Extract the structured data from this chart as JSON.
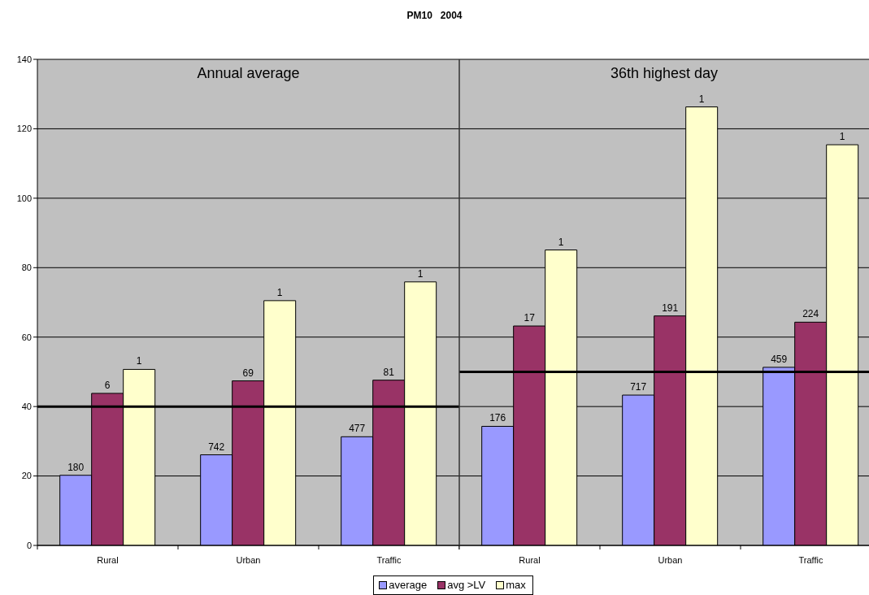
{
  "chart_data": [
    {
      "type": "bar",
      "title": "PM10   2004",
      "categories": [
        "Rural",
        "Urban",
        "Traffic"
      ],
      "series": [
        {
          "name": "average",
          "color": "#9999ff",
          "values": [
            20.2,
            26.1,
            31.3
          ]
        },
        {
          "name": "avg >LV",
          "color": "#993366",
          "values": [
            43.8,
            47.4,
            47.6
          ]
        },
        {
          "name": "max",
          "color": "#ffffcc",
          "values": [
            50.7,
            70.5,
            75.9
          ]
        }
      ],
      "ylim": [
        0,
        140
      ],
      "yticks": [
        0,
        20,
        40,
        60,
        80,
        100,
        120,
        140
      ],
      "grid": "y",
      "legend": "bottom",
      "ref_lines": [
        {
          "axis": "y",
          "value": 40,
          "color": "#000000"
        }
      ],
      "annotations": [
        "Annual average",
        "180",
        "6",
        "1",
        "742",
        "69",
        "1",
        "477",
        "81",
        "1"
      ]
    },
    {
      "type": "bar",
      "categories": [
        "Rural",
        "Urban",
        "Traffic"
      ],
      "series": [
        {
          "color": "#9999ff",
          "values": [
            34.3,
            43.3,
            51.3
          ]
        },
        {
          "color": "#993366",
          "values": [
            63.2,
            66.1,
            64.3
          ]
        },
        {
          "color": "#ffffcc",
          "values": [
            85.1,
            126.3,
            115.4
          ]
        }
      ],
      "ylim": [
        0,
        140
      ],
      "yticks": [
        0,
        20,
        40,
        60,
        80,
        100,
        120,
        140
      ],
      "grid": "y",
      "tick_labels": "x",
      "ref_lines": [
        {
          "axis": "y",
          "value": 50,
          "color": "#000000"
        }
      ],
      "annotations": [
        "36th highest day",
        "176",
        "17",
        "1",
        "717",
        "191",
        "1",
        "459",
        "224",
        "1"
      ]
    }
  ]
}
